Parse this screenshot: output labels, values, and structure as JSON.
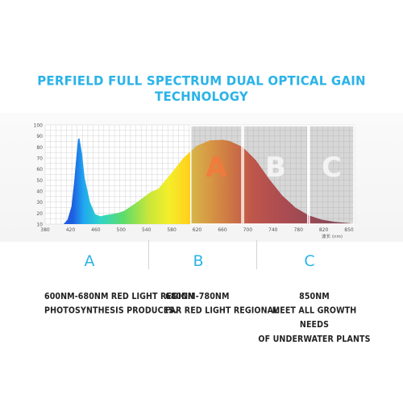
{
  "header": {
    "title": "PERFIELD FULL SPECTRUM DUAL OPTICAL GAIN TECHNOLOGY"
  },
  "chart_data": {
    "type": "area",
    "title": "PERFIELD FULL SPECTRUM DUAL OPTICAL GAIN TECHNOLOGY",
    "xlabel": "波长 (nm)",
    "ylabel": "",
    "x_tick_labels": [
      "380",
      "420",
      "460",
      "500",
      "540",
      "580",
      "620",
      "660",
      "700",
      "740",
      "780",
      "820",
      "850"
    ],
    "y_ticks": [
      10,
      20,
      30,
      40,
      50,
      60,
      70,
      80,
      90,
      100
    ],
    "xlim": [
      380,
      850
    ],
    "ylim": [
      10,
      100
    ],
    "grid": true,
    "series": [
      {
        "x": [
          380,
          408,
          414,
          420,
          424,
          428,
          430,
          432,
          436,
          440,
          448,
          456,
          464,
          470,
          480,
          490,
          500,
          520,
          540,
          552,
          570,
          590,
          610,
          630,
          650,
          660,
          680,
          700,
          720,
          740,
          760,
          780,
          800,
          820,
          840,
          850
        ],
        "y": [
          10,
          10,
          14,
          26,
          48,
          75,
          87,
          88,
          74,
          52,
          30,
          19,
          17,
          18,
          19,
          20,
          22,
          30,
          39,
          42,
          55,
          70,
          81,
          86,
          86.5,
          85.5,
          80,
          68,
          51,
          36,
          25,
          18,
          14,
          12,
          11,
          10
        ]
      }
    ],
    "regions": [
      {
        "label": "A",
        "x_start": 600,
        "x_end": 680
      },
      {
        "label": "B",
        "x_start": 680,
        "x_end": 780
      },
      {
        "label": "C",
        "x_start": 780,
        "x_end": 850
      }
    ]
  },
  "sections": [
    {
      "letter": "A",
      "line1": "600NM-680NM RED LIGHT REGION",
      "line2": "PHOTOSYNTHESIS PRODUCES.",
      "line3": ""
    },
    {
      "letter": "B",
      "line1": "680NM-780NM",
      "line2": "FAR RED LIGHT REGIONAL",
      "line3": ""
    },
    {
      "letter": "C",
      "line1": "850NM",
      "line2": "MEET ALL GROWTH NEEDS",
      "line3": "OF UNDERWATER PLANTS"
    }
  ]
}
